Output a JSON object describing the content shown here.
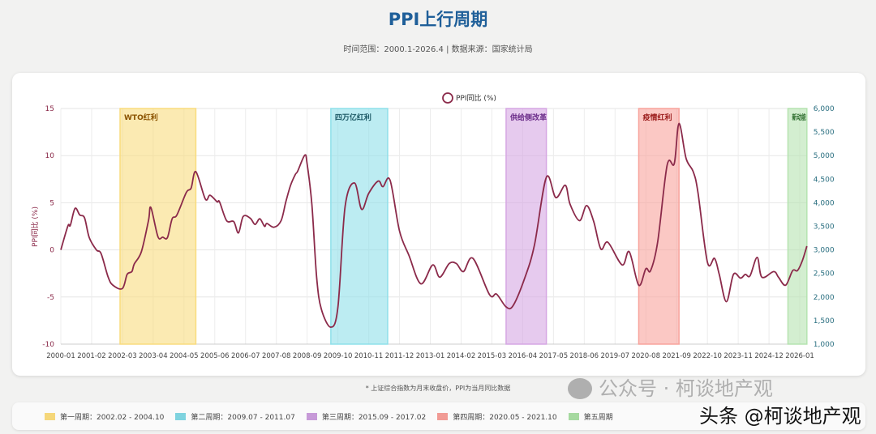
{
  "header": {
    "title": "PPI上行周期",
    "subtitle": "时间范围：2000.1-2026.4 | 数据来源：国家统计局"
  },
  "footnote": "* 上证综合指数为月末收盘价，PPI为当月同比数据",
  "watermark": {
    "wechat": "公众号 · 柯谈地产观",
    "toutiao": "头条 @柯谈地产观"
  },
  "legend_items": [
    {
      "label": "第一周期：2002.02 - 2004.10",
      "color": "#f5d77a"
    },
    {
      "label": "第二周期：2009.07 - 2011.07",
      "color": "#7fd3df"
    },
    {
      "label": "第三周期：2015.09 - 2017.02",
      "color": "#c79ad8"
    },
    {
      "label": "第四周期：2020.05 - 2021.10",
      "color": "#f19b95"
    },
    {
      "label": "第五周期",
      "color": "#a6d9a0"
    }
  ],
  "chart_data": {
    "type": "line",
    "legend": "PPI同比 (%)",
    "legend_position": "top",
    "ylabel": "PPI同比 (%)",
    "ylim": [
      -10,
      15
    ],
    "yticks": [
      "15",
      "10",
      "5",
      "0",
      "-5",
      "-10"
    ],
    "y2lim": [
      1000,
      6000
    ],
    "y2ticks": [
      "6,000",
      "5,500",
      "5,000",
      "4,500",
      "4,000",
      "3,500",
      "3,000",
      "2,500",
      "2,000",
      "1,500",
      "1,000"
    ],
    "xlim": [
      "2000-01",
      "2026-04"
    ],
    "xticks": [
      "2000-01",
      "2001-02",
      "2002-03",
      "2003-04",
      "2004-05",
      "2005-06",
      "2006-07",
      "2007-08",
      "2008-09",
      "2009-10",
      "2010-11",
      "2011-12",
      "2013-01",
      "2014-02",
      "2015-03",
      "2016-04",
      "2017-05",
      "2018-06",
      "2019-07",
      "2020-08",
      "2021-09",
      "2022-10",
      "2023-11",
      "2024-12",
      "2026-01"
    ],
    "grid": true,
    "line_color": "#8b2a4a",
    "series": [
      {
        "name": "PPI同比 (%)",
        "points": [
          [
            "2000-01",
            0
          ],
          [
            "2000-04",
            2.55
          ],
          [
            "2000-05",
            2.6
          ],
          [
            "2000-07",
            4.4
          ],
          [
            "2000-09",
            3.7
          ],
          [
            "2000-11",
            3.4
          ],
          [
            "2001-01",
            1.3
          ],
          [
            "2001-04",
            0
          ],
          [
            "2001-06",
            -0.4
          ],
          [
            "2001-09",
            -2.9
          ],
          [
            "2001-11",
            -3.75
          ],
          [
            "2002-03",
            -4.1
          ],
          [
            "2002-05",
            -2.6
          ],
          [
            "2002-07",
            -2.3
          ],
          [
            "2002-08",
            -1.5
          ],
          [
            "2002-11",
            -0.2
          ],
          [
            "2003-02",
            3.1
          ],
          [
            "2003-03",
            4.5
          ],
          [
            "2003-06",
            1.4
          ],
          [
            "2003-08",
            1.35
          ],
          [
            "2003-10",
            1.3
          ],
          [
            "2003-12",
            3.3
          ],
          [
            "2004-02",
            3.7
          ],
          [
            "2004-06",
            6.1
          ],
          [
            "2004-08",
            6.55
          ],
          [
            "2004-10",
            8.3
          ],
          [
            "2005-02",
            5.4
          ],
          [
            "2005-04",
            5.8
          ],
          [
            "2005-07",
            5.1
          ],
          [
            "2005-08",
            5.1
          ],
          [
            "2005-11",
            3.1
          ],
          [
            "2006-02",
            3.0
          ],
          [
            "2006-04",
            1.8
          ],
          [
            "2006-06",
            3.55
          ],
          [
            "2006-09",
            3.35
          ],
          [
            "2006-11",
            2.7
          ],
          [
            "2007-01",
            3.3
          ],
          [
            "2007-03",
            2.5
          ],
          [
            "2007-04",
            2.8
          ],
          [
            "2007-07",
            2.4
          ],
          [
            "2007-10",
            3.1
          ],
          [
            "2007-12",
            5.1
          ],
          [
            "2008-02",
            6.85
          ],
          [
            "2008-04",
            8.0
          ],
          [
            "2008-05",
            8.35
          ],
          [
            "2008-08",
            10.05
          ],
          [
            "2008-09",
            9.1
          ],
          [
            "2008-11",
            4.8
          ],
          [
            "2009-01",
            -2.9
          ],
          [
            "2009-03",
            -6.3
          ],
          [
            "2009-07",
            -8.2
          ],
          [
            "2009-10",
            -6.05
          ],
          [
            "2010-01",
            4.55
          ],
          [
            "2010-05",
            7.1
          ],
          [
            "2010-08",
            4.3
          ],
          [
            "2010-11",
            6.0
          ],
          [
            "2011-03",
            7.3
          ],
          [
            "2011-05",
            6.7
          ],
          [
            "2011-08",
            7.4
          ],
          [
            "2011-12",
            2.0
          ],
          [
            "2012-04",
            -0.6
          ],
          [
            "2012-09",
            -3.6
          ],
          [
            "2013-02",
            -1.6
          ],
          [
            "2013-05",
            -2.9
          ],
          [
            "2013-09",
            -1.45
          ],
          [
            "2013-12",
            -1.45
          ],
          [
            "2014-03",
            -2.3
          ],
          [
            "2014-07",
            -0.9
          ],
          [
            "2015-02",
            -4.75
          ],
          [
            "2015-05",
            -4.7
          ],
          [
            "2015-09",
            -6.05
          ],
          [
            "2015-12",
            -5.9
          ],
          [
            "2016-05",
            -2.9
          ],
          [
            "2016-09",
            0.55
          ],
          [
            "2017-02",
            7.7
          ],
          [
            "2017-06",
            5.55
          ],
          [
            "2017-10",
            6.85
          ],
          [
            "2017-12",
            4.85
          ],
          [
            "2018-04",
            3.1
          ],
          [
            "2018-07",
            4.7
          ],
          [
            "2018-10",
            3.0
          ],
          [
            "2019-01",
            0.1
          ],
          [
            "2019-04",
            0.8
          ],
          [
            "2019-10",
            -1.6
          ],
          [
            "2020-01",
            -0.2
          ],
          [
            "2020-05",
            -3.75
          ],
          [
            "2020-08",
            -2.0
          ],
          [
            "2020-10",
            -2.2
          ],
          [
            "2021-01",
            0.85
          ],
          [
            "2021-05",
            9.0
          ],
          [
            "2021-08",
            9.15
          ],
          [
            "2021-10",
            13.4
          ],
          [
            "2022-01",
            9.7
          ],
          [
            "2022-04",
            8.3
          ],
          [
            "2022-06",
            6.1
          ],
          [
            "2022-10",
            -1.3
          ],
          [
            "2023-01",
            -0.9
          ],
          [
            "2023-03",
            -2.6
          ],
          [
            "2023-06",
            -5.5
          ],
          [
            "2023-09",
            -2.6
          ],
          [
            "2023-12",
            -3.0
          ],
          [
            "2024-02",
            -2.6
          ],
          [
            "2024-04",
            -2.75
          ],
          [
            "2024-07",
            -0.8
          ],
          [
            "2024-09",
            -2.9
          ],
          [
            "2025-02",
            -2.3
          ],
          [
            "2025-04",
            -2.9
          ],
          [
            "2025-07",
            -3.75
          ],
          [
            "2025-10",
            -2.2
          ],
          [
            "2025-12",
            -2.2
          ],
          [
            "2026-02",
            -1.2
          ],
          [
            "2026-04",
            0.4
          ]
        ]
      }
    ],
    "bands": [
      {
        "label": "WTO红利",
        "start": "2002-02",
        "end": "2004-10",
        "fill": "#f9dc7e",
        "text_color": "#8a5200"
      },
      {
        "label": "四万亿红利",
        "start": "2009-07",
        "end": "2011-07",
        "fill": "#8fe0ea",
        "text_color": "#1d5a66"
      },
      {
        "label": "供给侧改革",
        "start": "2015-09",
        "end": "2017-02",
        "fill": "#d6a6e3",
        "text_color": "#6a2b88"
      },
      {
        "label": "疫情红利",
        "start": "2020-05",
        "end": "2021-10",
        "fill": "#f8a39c",
        "text_color": "#9b1c1c"
      },
      {
        "label": "新动能",
        "start": "2025-08",
        "end": "2026-04",
        "fill": "#b5e3b0",
        "text_color": "#2b6b2b"
      }
    ]
  }
}
